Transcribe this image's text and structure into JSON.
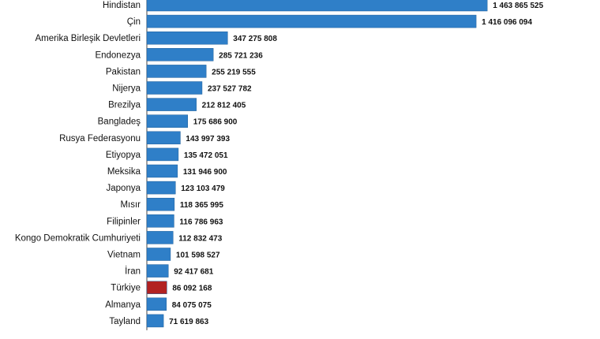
{
  "colors": {
    "bar": "#2f7fc8",
    "highlight": "#b22222",
    "axis": "#444444"
  },
  "chart_data": {
    "type": "bar",
    "orientation": "horizontal",
    "title": "",
    "xlabel": "",
    "ylabel": "",
    "grid": false,
    "legend": "none",
    "highlight_category": "Türkiye",
    "categories": [
      "Hindistan",
      "Çin",
      "Amerika Birleşik Devletleri",
      "Endonezya",
      "Pakistan",
      "Nijerya",
      "Brezilya",
      "Bangladeş",
      "Rusya Federasyonu",
      "Etiyopya",
      "Meksika",
      "Japonya",
      "Mısır",
      "Filipinler",
      "Kongo Demokratik Cumhuriyeti",
      "Vietnam",
      "İran",
      "Türkiye",
      "Almanya",
      "Tayland"
    ],
    "values": [
      1463865525,
      1416096094,
      347275808,
      285721236,
      255219555,
      237527782,
      212812405,
      175686900,
      143997393,
      135472051,
      131946900,
      123103479,
      118365995,
      116786963,
      112832473,
      101598527,
      92417681,
      86092168,
      84075075,
      71619863
    ],
    "value_labels": [
      "1 463 865 525",
      "1 416 096 094",
      "347 275 808",
      "285 721 236",
      "255 219 555",
      "237 527 782",
      "212 812 405",
      "175 686 900",
      "143 997 393",
      "135 472 051",
      "131 946 900",
      "123 103 479",
      "118 365 995",
      "116 786 963",
      "112 832 473",
      "101 598 527",
      "92 417 681",
      "86 092 168",
      "84 075 075",
      "71 619 863"
    ],
    "xlim": [
      0,
      1470000000
    ]
  }
}
